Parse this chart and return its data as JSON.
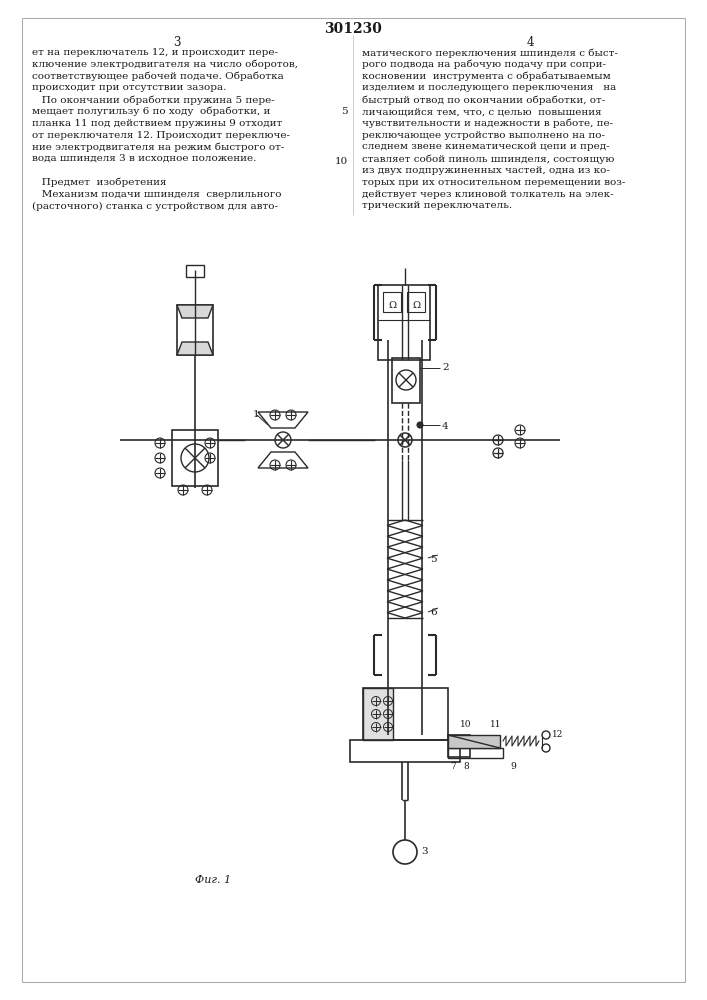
{
  "title": "301230",
  "fig_label": "Фиг. 1",
  "bg_color": "#ffffff",
  "line_color": "#2a2a2a",
  "text_color": "#1a1a1a",
  "left_col_lines": [
    "ет на переключатель 12, и происходит пере-",
    "ключение электродвигателя на число оборотов,",
    "соответствующее рабочей подаче. Обработка",
    "происходит при отсутствии зазора.",
    "   По окончании обработки пружина 5 пере-",
    "мещает полугильзу 6 по ходу  обработки, и",
    "планка 11 под действием пружины 9 отходит",
    "от переключателя 12. Происходит переключе-",
    "ние электродвигателя на режим быстрого от-",
    "вода шпинделя 3 в исходное положение.",
    "",
    "   Предмет  изобретения",
    "   Механизм подачи шпинделя  сверлильного",
    "(расточного) станка с устройством для авто-"
  ],
  "right_col_lines": [
    "матического переключения шпинделя с быст-",
    "рого подвода на рабочую подачу при сопри-",
    "косновении  инструмента с обрабатываемым",
    "изделием и последующего переключения   на",
    "быстрый отвод по окончании обработки, от-",
    "личающийся тем, что, с целью  повышения",
    "чувствительности и надежности в работе, пе-",
    "реключающее устройство выполнено на по-",
    "следнем звене кинематической цепи и пред-",
    "ставляет собой пиноль шпинделя, состоящую",
    "из двух подпружиненных частей, одна из ко-",
    "торых при их относительном перемещении воз-",
    "действует через клиновой толкатель на элек-",
    "трический переключатель."
  ]
}
